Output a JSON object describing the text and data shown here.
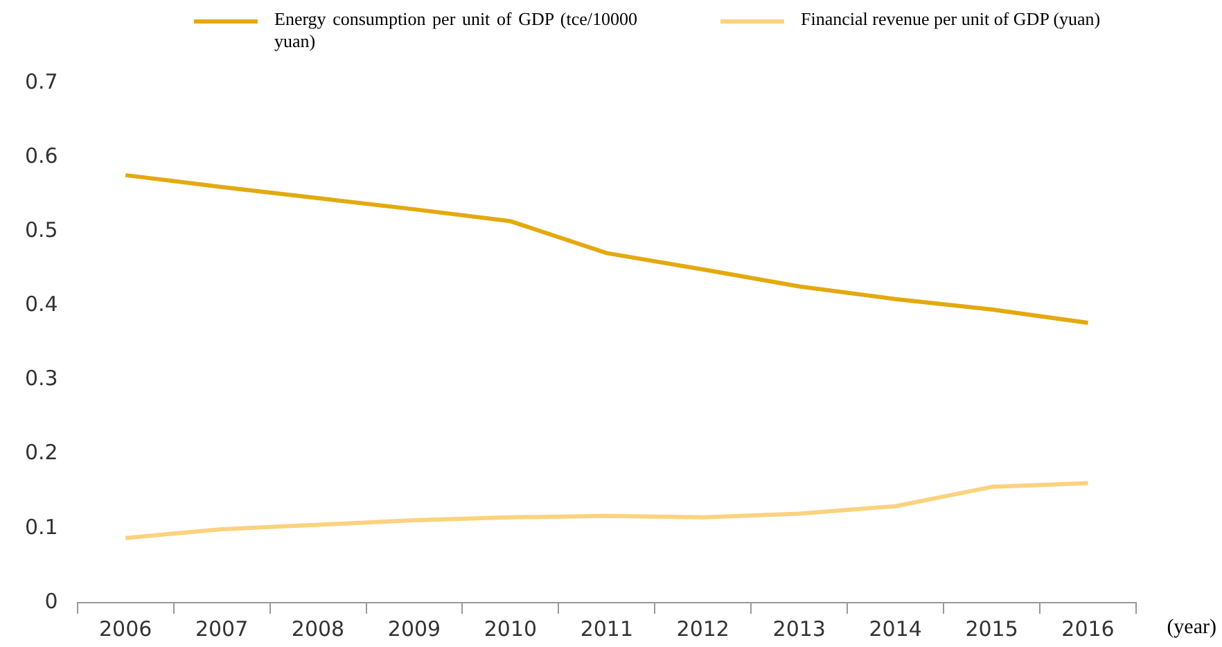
{
  "chart_data": {
    "type": "line",
    "xlabel": "(year)",
    "categories": [
      "2006",
      "2007",
      "2008",
      "2009",
      "2010",
      "2011",
      "2012",
      "2013",
      "2014",
      "2015",
      "2016"
    ],
    "series": [
      {
        "name": "Energy consumption per unit of GDP (tce/10000 yuan)",
        "color": "#e3a90f",
        "values": [
          0.576,
          0.56,
          0.545,
          0.53,
          0.514,
          0.471,
          0.449,
          0.426,
          0.409,
          0.395,
          0.377
        ]
      },
      {
        "name": "Financial revenue per unit of GDP (yuan)",
        "color": "#fbd27e",
        "values": [
          0.087,
          0.099,
          0.105,
          0.111,
          0.115,
          0.117,
          0.115,
          0.12,
          0.13,
          0.156,
          0.161
        ]
      }
    ],
    "ylim": [
      0,
      0.7
    ],
    "yticks": [
      0,
      0.1,
      0.2,
      0.3,
      0.4,
      0.5,
      0.6,
      0.7
    ],
    "grid": false,
    "legend": "top",
    "marker": "none",
    "line_style": "solid"
  }
}
